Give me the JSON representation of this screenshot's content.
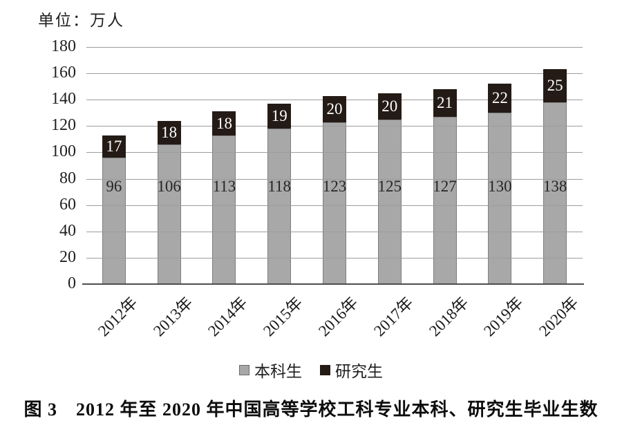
{
  "figure": {
    "unit_label": "单位：万人",
    "caption": "图 3　2012 年至 2020 年中国高等学校工科专业本科、研究生毕业生数"
  },
  "legend": [
    {
      "label": "本科生",
      "color": "#a8a8a8",
      "border": "#6b6b6b"
    },
    {
      "label": "研究生",
      "color": "#241b16",
      "border": "#241b16"
    }
  ],
  "colors": {
    "undergrad_fill": "#a8a8a8",
    "undergrad_border": "#7e7e7e",
    "grad_fill": "#241b16",
    "gridline": "#9c9c9c",
    "axis": "#4d4d4d",
    "label_on_gray": "#262626",
    "label_on_black": "#ffffff",
    "text": "#1a1a1a",
    "background": "#ffffff"
  },
  "chart_data": {
    "type": "bar",
    "stacked": true,
    "title": "图 3　2012 年至 2020 年中国高等学校工科专业本科、研究生毕业生数",
    "unit": "万人",
    "categories": [
      "2012年",
      "2013年",
      "2014年",
      "2015年",
      "2016年",
      "2017年",
      "2018年",
      "2019年",
      "2020年"
    ],
    "series": [
      {
        "name": "本科生",
        "values": [
          96,
          106,
          113,
          118,
          123,
          125,
          127,
          130,
          138
        ],
        "color": "#a8a8a8"
      },
      {
        "name": "研究生",
        "values": [
          17,
          18,
          18,
          19,
          20,
          20,
          21,
          22,
          25
        ],
        "color": "#241b16"
      }
    ],
    "totals": [
      113,
      124,
      131,
      137,
      143,
      145,
      148,
      152,
      163
    ],
    "ylim": [
      0,
      180
    ],
    "yticks": [
      0,
      20,
      40,
      60,
      80,
      100,
      120,
      140,
      160,
      180
    ],
    "grid": true,
    "legend_position": "bottom",
    "xlabel": "",
    "ylabel": "万人"
  }
}
